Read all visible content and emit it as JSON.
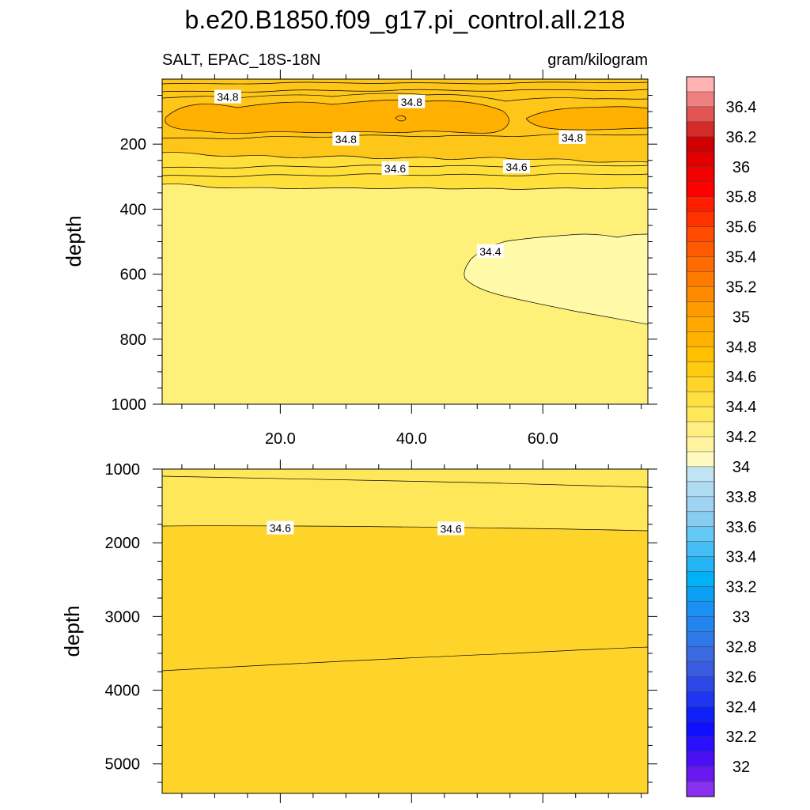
{
  "chart_data": [
    {
      "type": "contour",
      "panel": "upper",
      "title": "b.e20.B1850.f09_g17.pi_control.all.218",
      "left_subtitle": "SALT, EPAC_18S-18N",
      "right_subtitle": "gram/kilogram",
      "xlabel": "",
      "ylabel": "depth",
      "xlim": [
        2,
        76
      ],
      "ylim": [
        1000,
        0
      ],
      "xticks": [
        "20.0",
        "40.0",
        "60.0"
      ],
      "xtick_values": [
        20,
        40,
        60
      ],
      "yticks": [
        "200",
        "400",
        "600",
        "800",
        "1000"
      ],
      "ytick_values": [
        200,
        400,
        600,
        800,
        1000
      ],
      "contour_labels": [
        {
          "text": "34.8",
          "x": 12.0,
          "y": 55
        },
        {
          "text": "34.8",
          "x": 40.0,
          "y": 70
        },
        {
          "text": "34.8",
          "x": 30.0,
          "y": 185
        },
        {
          "text": "34.8",
          "x": 64.5,
          "y": 180
        },
        {
          "text": "34.6",
          "x": 37.5,
          "y": 275
        },
        {
          "text": "34.6",
          "x": 56.0,
          "y": 270
        },
        {
          "text": "34.4",
          "x": 52.0,
          "y": 530
        }
      ]
    },
    {
      "type": "contour",
      "panel": "lower",
      "xlabel": "",
      "ylabel": "depth",
      "xlim": [
        2,
        76
      ],
      "ylim": [
        5400,
        1000
      ],
      "yticks": [
        "1000",
        "2000",
        "3000",
        "4000",
        "5000"
      ],
      "ytick_values": [
        1000,
        2000,
        3000,
        4000,
        5000
      ],
      "contour_labels": [
        {
          "text": "34.6",
          "x": 20.0,
          "y": 1800
        },
        {
          "text": "34.6",
          "x": 46.0,
          "y": 1810
        }
      ]
    }
  ],
  "colorbar": {
    "labels": [
      "36.4",
      "36.2",
      "36",
      "35.8",
      "35.6",
      "35.4",
      "35.2",
      "35",
      "34.8",
      "34.6",
      "34.4",
      "34.2",
      "34",
      "33.8",
      "33.6",
      "33.4",
      "33.2",
      "33",
      "32.8",
      "32.6",
      "32.4",
      "32.2",
      "32"
    ],
    "label_values": [
      36.4,
      36.2,
      36.0,
      35.8,
      35.6,
      35.4,
      35.2,
      35.0,
      34.8,
      34.6,
      34.4,
      34.2,
      34.0,
      33.8,
      33.6,
      33.4,
      33.2,
      33.0,
      32.8,
      32.6,
      32.4,
      32.2,
      32.0
    ],
    "colors": [
      "#ffb3b3",
      "#f08080",
      "#e35555",
      "#d42a2a",
      "#d00000",
      "#e00000",
      "#f50000",
      "#ff0000",
      "#ff1e00",
      "#ff3300",
      "#ff4a00",
      "#ff5a00",
      "#ff6b00",
      "#ff7b00",
      "#ff8a00",
      "#ff9a00",
      "#ffa800",
      "#ffb300",
      "#ffc000",
      "#ffcc10",
      "#ffd52a",
      "#ffe040",
      "#ffe75a",
      "#ffee80",
      "#fff3a0",
      "#fff9c0",
      "#c0e4f2",
      "#b0dcf2",
      "#9ed4f2",
      "#88ccf2",
      "#66c8f5",
      "#44bdf5",
      "#22b4f5",
      "#00b2f5",
      "#0aa0f5",
      "#1a90f5",
      "#2585f0",
      "#2f78e8",
      "#3a6ae2",
      "#3a5ae0",
      "#2c48e8",
      "#1e36f0",
      "#1020f8",
      "#1010ff",
      "#2a10ff",
      "#4a10f5",
      "#6a18f0",
      "#8a30ef"
    ]
  }
}
